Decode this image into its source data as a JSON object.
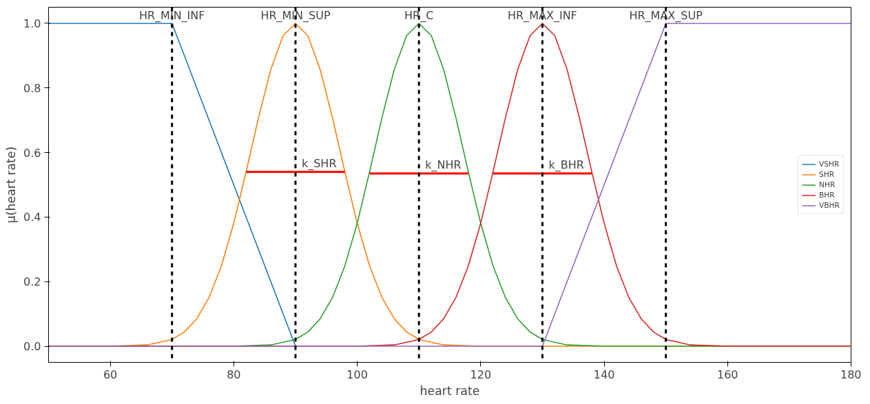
{
  "chart_data": {
    "type": "line",
    "xlabel": "heart rate",
    "ylabel": "μ(heart rate)",
    "xlim": [
      50,
      180
    ],
    "xticks": [
      60,
      80,
      100,
      120,
      140,
      160,
      180
    ],
    "ylim": [
      -0.05,
      1.05
    ],
    "yticks": [
      {
        "value": 0,
        "label": "0.0"
      },
      {
        "value": 0.2,
        "label": "0.2"
      },
      {
        "value": 0.4,
        "label": "0.4"
      },
      {
        "value": 0.6,
        "label": "0.6"
      },
      {
        "value": 0.8,
        "label": "0.8"
      },
      {
        "value": 1,
        "label": "1.0"
      }
    ],
    "grid": false,
    "legend": "right",
    "line_style": "solid",
    "marker": "none",
    "series": [
      {
        "name": "VSHR",
        "color": "#1f77b4",
        "x": [
          50,
          70,
          90
        ],
        "values": [
          1,
          1,
          0
        ]
      },
      {
        "name": "SHR",
        "color": "#ff7f0e",
        "x": [
          50,
          60,
          66,
          70,
          72,
          74,
          76,
          78,
          80,
          82,
          84,
          86,
          88,
          90,
          92,
          94,
          96,
          98,
          100,
          102,
          104,
          106,
          108,
          110,
          114,
          120,
          180
        ],
        "values": [
          0,
          0,
          0.004,
          0.021,
          0.044,
          0.085,
          0.151,
          0.249,
          0.381,
          0.54,
          0.707,
          0.857,
          0.962,
          1,
          0.962,
          0.857,
          0.707,
          0.54,
          0.381,
          0.249,
          0.151,
          0.085,
          0.044,
          0.021,
          0.004,
          0,
          0
        ]
      },
      {
        "name": "NHR",
        "color": "#2ca02c",
        "x": [
          50,
          80,
          86,
          90,
          92,
          94,
          96,
          98,
          100,
          102,
          104,
          106,
          108,
          110,
          112,
          114,
          116,
          118,
          120,
          122,
          124,
          126,
          128,
          130,
          134,
          140,
          180
        ],
        "values": [
          0,
          0,
          0.004,
          0.021,
          0.044,
          0.085,
          0.151,
          0.249,
          0.381,
          0.54,
          0.707,
          0.857,
          0.962,
          1,
          0.962,
          0.857,
          0.707,
          0.54,
          0.381,
          0.249,
          0.151,
          0.085,
          0.044,
          0.021,
          0.004,
          0,
          0
        ]
      },
      {
        "name": "BHR",
        "color": "#d62728",
        "x": [
          50,
          100,
          106,
          110,
          112,
          114,
          116,
          118,
          120,
          122,
          124,
          126,
          128,
          130,
          132,
          134,
          136,
          138,
          140,
          142,
          144,
          146,
          148,
          150,
          154,
          160,
          180
        ],
        "values": [
          0,
          0,
          0.004,
          0.021,
          0.044,
          0.085,
          0.151,
          0.249,
          0.381,
          0.54,
          0.707,
          0.857,
          0.962,
          1,
          0.962,
          0.857,
          0.707,
          0.54,
          0.381,
          0.249,
          0.151,
          0.085,
          0.044,
          0.021,
          0.004,
          0,
          0
        ]
      },
      {
        "name": "VBHR",
        "color": "#9467bd",
        "x": [
          50,
          130,
          150,
          180
        ],
        "values": [
          0,
          0,
          1,
          1
        ]
      },
      {
        "color": "#ff0000",
        "x": [
          82,
          98
        ],
        "values": [
          0.54,
          0.54
        ]
      },
      {
        "color": "#ff0000",
        "x": [
          102,
          118
        ],
        "values": [
          0.535,
          0.535
        ]
      },
      {
        "color": "#ff0000",
        "x": [
          122,
          138
        ],
        "values": [
          0.535,
          0.535
        ]
      }
    ],
    "ref_lines": [
      {
        "axis": "x",
        "value": 70,
        "label": "HR_MIN_INF",
        "color": "#000000",
        "line_style": "dashed"
      },
      {
        "axis": "x",
        "value": 90,
        "label": "HR_MIN_SUP",
        "color": "#000000",
        "line_style": "dashed"
      },
      {
        "axis": "x",
        "value": 110,
        "label": "HR_C",
        "color": "#000000",
        "line_style": "dashed"
      },
      {
        "axis": "x",
        "value": 130,
        "label": "HR_MAX_INF",
        "color": "#000000",
        "line_style": "dashed"
      },
      {
        "axis": "x",
        "value": 150,
        "label": "HR_MAX_SUP",
        "color": "#000000",
        "line_style": "dashed"
      }
    ],
    "annotations": [
      {
        "text": "k_SHR",
        "x": 91,
        "y": 0.54
      },
      {
        "text": "k_NHR",
        "x": 111,
        "y": 0.535
      },
      {
        "text": "k_BHR",
        "x": 131,
        "y": 0.535
      }
    ]
  }
}
